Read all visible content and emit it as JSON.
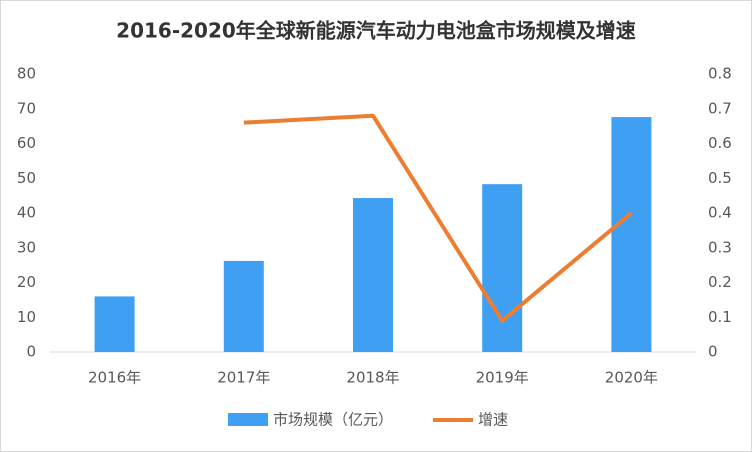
{
  "chart_data": {
    "type": "bar_line",
    "title": "2016-2020年全球新能源汽车动力电池盒市场规模及增速",
    "categories": [
      "2016年",
      "2017年",
      "2018年",
      "2019年",
      "2020年"
    ],
    "series": [
      {
        "name": "市场规模（亿元）",
        "type": "bar",
        "color": "#3f9ff2",
        "values": [
          16,
          26.2,
          44.3,
          48.3,
          67.6
        ]
      },
      {
        "name": "增速",
        "type": "line",
        "axis": "y2",
        "color": "#ed7d31",
        "values": [
          null,
          0.66,
          0.68,
          0.09,
          0.4
        ]
      }
    ],
    "ylim": [
      0,
      80
    ],
    "yticks": [
      0,
      10,
      20,
      30,
      40,
      50,
      60,
      70,
      80
    ],
    "y2lim": [
      0,
      0.8
    ],
    "y2ticks": [
      0,
      0.1,
      0.2,
      0.3,
      0.4,
      0.5,
      0.6,
      0.7,
      0.8
    ],
    "grid": false,
    "legend": "bottom"
  }
}
